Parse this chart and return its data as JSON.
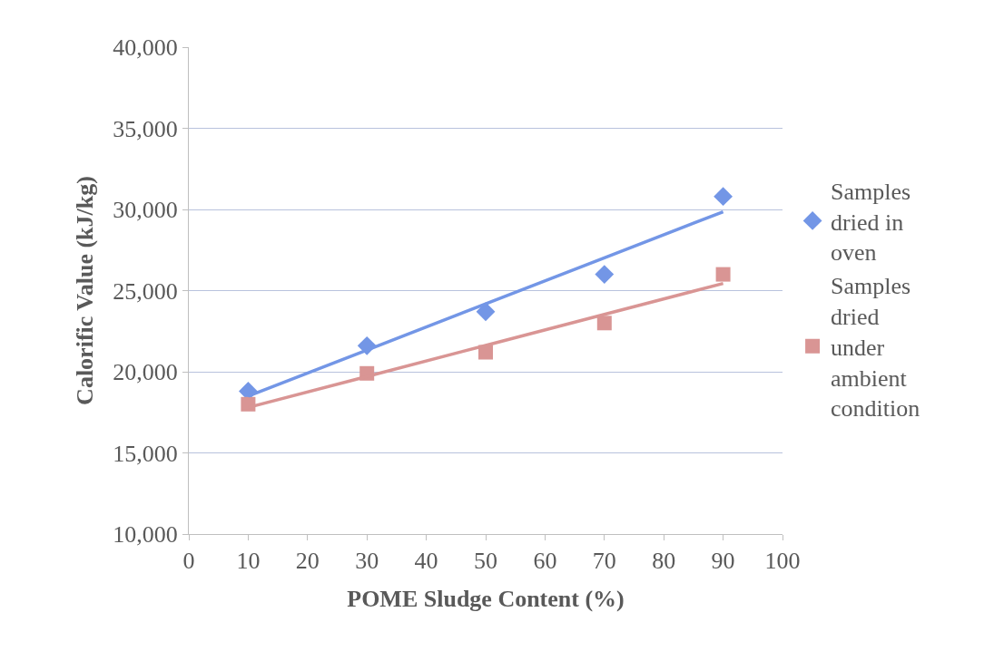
{
  "chart_data": {
    "type": "scatter",
    "xlabel": "POME Sludge Content (%)",
    "ylabel": "Calorific Value (kJ/kg)",
    "x": [
      10,
      30,
      50,
      70,
      90
    ],
    "series": [
      {
        "name": "Samples dried in oven",
        "color": "#7396e6",
        "marker": "diamond",
        "values": [
          18800,
          21600,
          23700,
          26000,
          30800
        ]
      },
      {
        "name": "Samples dried under ambient condition",
        "color": "#d99594",
        "marker": "square",
        "values": [
          18000,
          19900,
          21200,
          23000,
          26000
        ]
      },
      {
        "type": "line",
        "color": "#7396e6",
        "values": [
          18500,
          21340,
          24180,
          27020,
          29860
        ],
        "marker": "none"
      },
      {
        "type": "line",
        "color": "#d99594",
        "values": [
          17800,
          19710,
          21620,
          23530,
          25440
        ],
        "marker": "none"
      }
    ],
    "xlim": [
      0,
      100
    ],
    "xticks": [
      0,
      10,
      20,
      30,
      40,
      50,
      60,
      70,
      80,
      90,
      100
    ],
    "ylim": [
      10000,
      40000
    ],
    "yticks": [
      {
        "value": 10000,
        "label": "10,000"
      },
      {
        "value": 15000,
        "label": "15,000"
      },
      {
        "value": 20000,
        "label": "20,000"
      },
      {
        "value": 25000,
        "label": "25,000"
      },
      {
        "value": 30000,
        "label": "30,000"
      },
      {
        "value": 35000,
        "label": "35,000"
      },
      {
        "value": 40000,
        "label": "40,000"
      }
    ],
    "grid": "y",
    "legend": "right"
  }
}
